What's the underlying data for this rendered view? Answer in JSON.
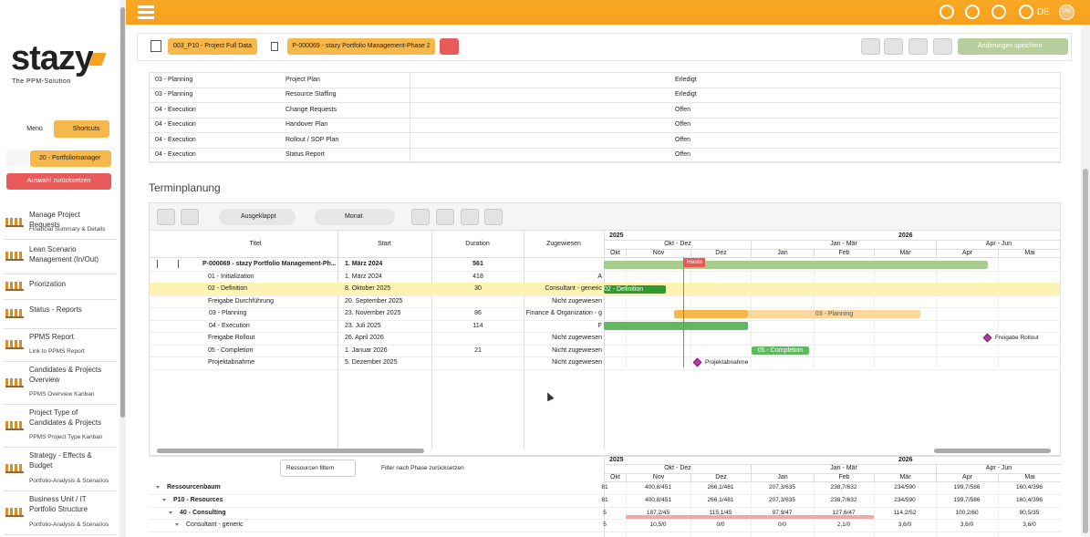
{
  "sidebar": {
    "logo": "stazy",
    "tagline": "The PPM-Solution",
    "menu": "Menü",
    "shortcuts": "Shortcuts",
    "role": "20 - Portfoliomanager",
    "reset": "Auswahl zurücksetzen",
    "nav": [
      {
        "title": "Manage Project Requests",
        "subtitle": "Financial Summary & Details"
      },
      {
        "title": "Lean Scenario Management (In/Out)"
      },
      {
        "title": "Priorization"
      },
      {
        "title": "Status - Reports"
      },
      {
        "title": "PPMS Report",
        "subtitle": "Link to PPMS Report"
      },
      {
        "title": "Candidates & Projects Overview",
        "subtitle": "PPMS Overview Kanban"
      },
      {
        "title": "Project Type of Candidates & Projects",
        "subtitle": "PPMS Project Type Kanban"
      },
      {
        "title": "Strategy - Effects & Budget",
        "subtitle": "Portfolio-Analysis & Scenarios"
      },
      {
        "title": "Business Unit / IT Portfolio Structure",
        "subtitle": "Portfolio-Analysis & Scenarios"
      }
    ]
  },
  "topbar": {
    "language": "DE",
    "avatar": "PM"
  },
  "breadcrumb": {
    "project_data": "003_P10 - Project Full Data",
    "project": "P-000069 - stazy Portfolio Management-Phase 2",
    "save": "Änderungen speichern"
  },
  "task_table": {
    "rows": [
      [
        "03 - Planning",
        "Project Plan",
        "Erledigt"
      ],
      [
        "03 - Planning",
        "Resource Staffing",
        "Erledigt"
      ],
      [
        "04 - Execution",
        "Change Requests",
        "Offen"
      ],
      [
        "04 - Execution",
        "Handover Plan",
        "Offen"
      ],
      [
        "04 - Execution",
        "Rollout / SOP Plan",
        "Offen"
      ],
      [
        "04 - Execution",
        "Status Report",
        "Offen"
      ]
    ]
  },
  "section_title": "Terminplanung",
  "toolbar": {
    "expanded": "Ausgeklappt",
    "scale": "Monat"
  },
  "gantt": {
    "columns": [
      "Titel",
      "Start",
      "Duration",
      "Zugewiesen"
    ],
    "rows": [
      {
        "title": "P-000069 - stazy Portfolio Management-Ph...",
        "start": "1. März 2024",
        "duration": 561
      },
      {
        "title": "01 - Initialization",
        "start": "1. März 2024",
        "duration": 418,
        "assigned": "A"
      },
      {
        "title": "02 - Definition",
        "start": "8. Oktober 2025",
        "duration": 30,
        "assigned": "Consultant - generic"
      },
      {
        "title": "Freigabe Durchführung",
        "start": "20. September 2025",
        "assigned": "Nicht zugewiesen"
      },
      {
        "title": "03 - Planning",
        "start": "23. November 2025",
        "duration": 86,
        "assigned": "Finance & Organization - g"
      },
      {
        "title": "04 - Execution",
        "start": "23. Juli 2025",
        "duration": 114,
        "assigned": "F"
      },
      {
        "title": "Freigabe Rollout",
        "start": "26. April 2026",
        "assigned": "Nicht zugewiesen"
      },
      {
        "title": "05 - Completion",
        "start": "1. Januar 2026",
        "duration": 21,
        "assigned": "Nicht zugewiesen"
      },
      {
        "title": "Projektabnahme",
        "start": "5. Dezember 2025",
        "assigned": "Nicht zugewiesen"
      }
    ],
    "years": [
      "2025",
      "2026"
    ],
    "quarters": [
      "Okt - Dez",
      "Jan - Mär",
      "Apr - Jun"
    ],
    "months": [
      "Okt",
      "Nov",
      "Dez",
      "Jan",
      "Feb",
      "Mär",
      "Apr",
      "Mai"
    ],
    "today": "Heute"
  },
  "resources": {
    "filter": "Ressourcen filtern",
    "reset_filter": "Filter nach Phase zurücksetzen",
    "rows": [
      {
        "name": "Ressourcenbaum",
        "values": [
          "81",
          "400,8/451",
          "266,1/481",
          "207,3/635",
          "238,7/632",
          "234/590",
          "199,7/586",
          "160,4/396"
        ]
      },
      {
        "name": "P10 - Resources",
        "values": [
          "81",
          "400,8/451",
          "266,1/481",
          "207,3/635",
          "238,7/632",
          "234/590",
          "199,7/586",
          "160,4/396"
        ]
      },
      {
        "name": "40 - Consulting",
        "values": [
          "5",
          "187,2/45",
          "115,1/45",
          "97,9/47",
          "127,6/47",
          "114,2/52",
          "100,2/60",
          "90,5/35"
        ]
      },
      {
        "name": "Consultant - generic",
        "values": [
          "5",
          "10,5/0",
          "0/0",
          "0/0",
          "2,1/0",
          "3,6/0",
          "3,6/0",
          "3,6/0"
        ]
      }
    ]
  }
}
